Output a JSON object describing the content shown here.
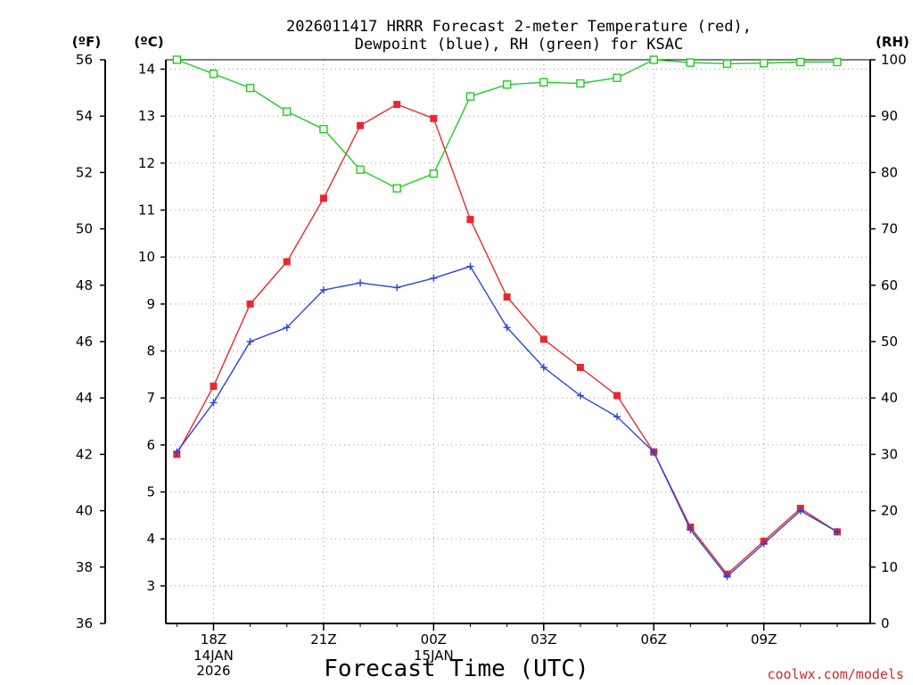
{
  "title_line1": "2026011417 HRRR Forecast 2-meter Temperature (red),",
  "title_line2": "Dewpoint (blue), RH (green) for KSAC",
  "units": {
    "fahrenheit": "(ºF)",
    "celsius": "(ºC)",
    "rh": "(RH)"
  },
  "credit": "coolwx.com/models",
  "colors": {
    "temperature": "#e8282f",
    "dewpoint": "#2a44d8",
    "rh": "#22cc22",
    "grid": "#999999"
  },
  "chart_data": {
    "type": "line",
    "title": "2026011417 HRRR Forecast 2-meter Temperature (red), Dewpoint (blue), RH (green) for KSAC",
    "xlabel": "Forecast Time (UTC)",
    "x": [
      "17Z",
      "18Z",
      "19Z",
      "20Z",
      "21Z",
      "22Z",
      "23Z",
      "00Z",
      "01Z",
      "02Z",
      "03Z",
      "04Z",
      "05Z",
      "06Z",
      "07Z",
      "08Z",
      "09Z",
      "10Z",
      "11Z"
    ],
    "xlim": [
      16.7,
      35.9
    ],
    "xticks": [
      {
        "x": 18,
        "label": "18Z"
      },
      {
        "x": 21,
        "label": "21Z"
      },
      {
        "x": 24,
        "label": "00Z"
      },
      {
        "x": 27,
        "label": "03Z"
      },
      {
        "x": 30,
        "label": "06Z"
      },
      {
        "x": 33,
        "label": "09Z"
      }
    ],
    "date_labels": [
      {
        "x": 18,
        "lines": [
          "14JAN",
          "2026"
        ]
      },
      {
        "x": 24,
        "lines": [
          "15JAN"
        ]
      }
    ],
    "left_axis_celsius": {
      "ylim": [
        2.2,
        14.2
      ],
      "ticks": [
        3,
        4,
        5,
        6,
        7,
        8,
        9,
        10,
        11,
        12,
        13,
        14
      ]
    },
    "left_axis_fahrenheit": {
      "ylim": [
        36,
        56
      ],
      "ticks": [
        36,
        38,
        40,
        42,
        44,
        46,
        48,
        50,
        52,
        54,
        56
      ]
    },
    "right_axis_rh": {
      "ylim": [
        0,
        100
      ],
      "ticks": [
        0,
        10,
        20,
        30,
        40,
        50,
        60,
        70,
        80,
        90,
        100
      ]
    },
    "series": [
      {
        "name": "Temperature",
        "axis": "celsius",
        "color": "#e8282f",
        "marker": "filled-square",
        "values": [
          5.8,
          7.25,
          9.0,
          9.9,
          11.25,
          12.8,
          13.25,
          12.95,
          10.8,
          9.15,
          8.25,
          7.65,
          7.05,
          5.85,
          4.25,
          3.25,
          3.95,
          4.65,
          4.15
        ]
      },
      {
        "name": "Dewpoint",
        "axis": "celsius",
        "color": "#2a44d8",
        "marker": "plus",
        "values": [
          5.85,
          6.9,
          8.2,
          8.5,
          9.3,
          9.45,
          9.35,
          9.55,
          9.8,
          8.5,
          7.65,
          7.05,
          6.6,
          5.85,
          4.2,
          3.2,
          3.9,
          4.6,
          4.15
        ]
      },
      {
        "name": "RH",
        "axis": "rh",
        "color": "#22cc22",
        "marker": "open-square",
        "values": [
          100,
          97.5,
          95,
          90.8,
          87.7,
          80.5,
          77.2,
          79.8,
          93.5,
          95.6,
          96.0,
          95.8,
          96.8,
          100,
          99.5,
          99.3,
          99.4,
          99.6,
          99.6
        ]
      }
    ]
  }
}
